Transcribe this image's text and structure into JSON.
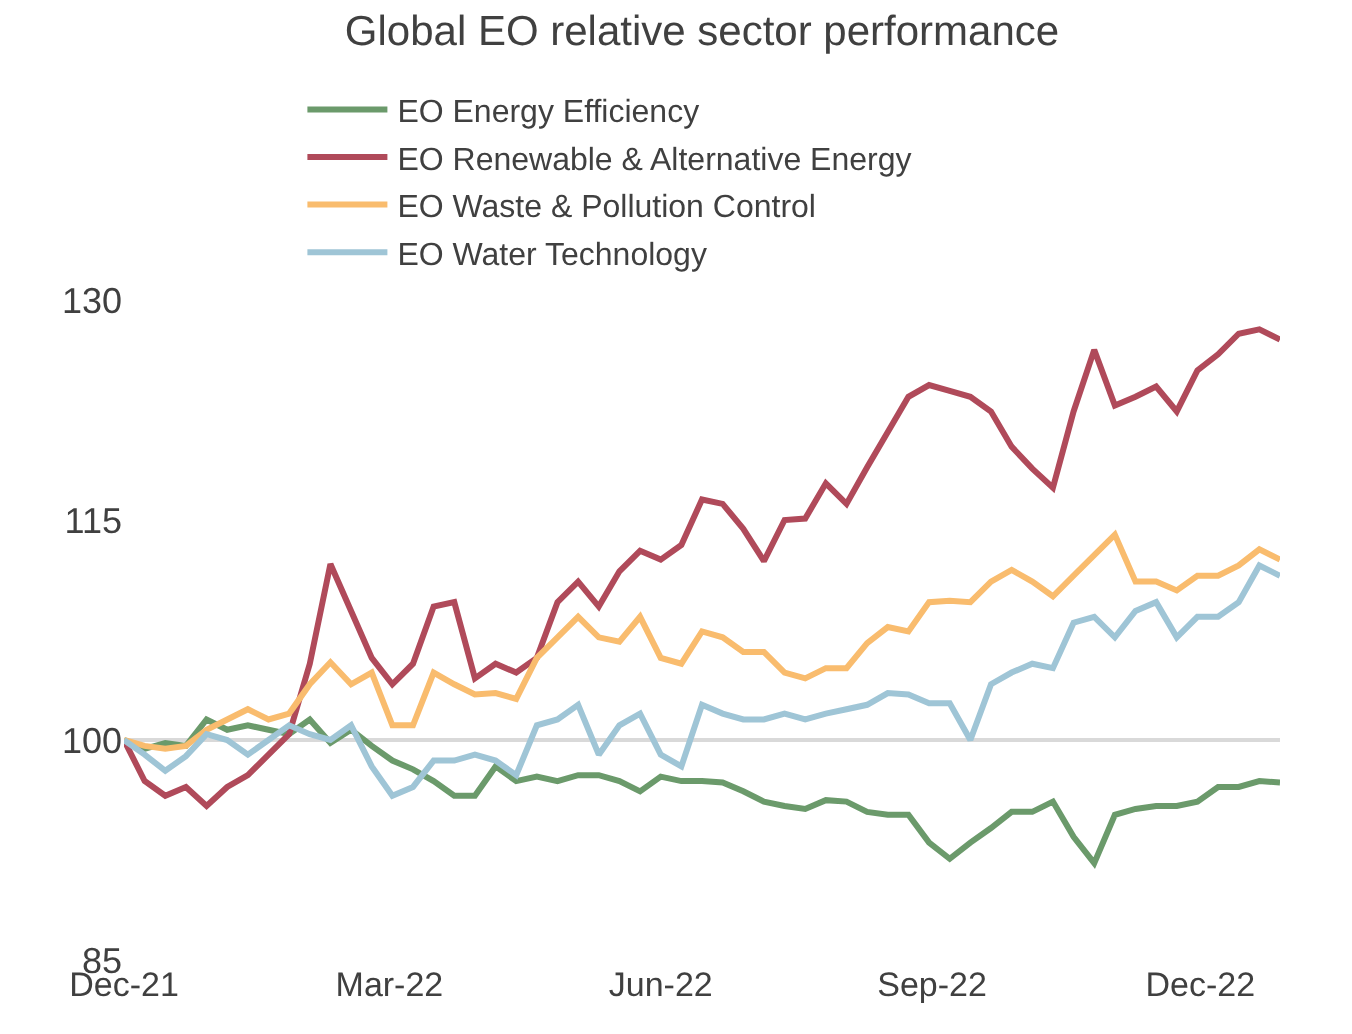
{
  "chart_data": {
    "type": "line",
    "title": "Global EO relative sector performance",
    "x": [
      "2021-12-01",
      "2021-12-08",
      "2021-12-15",
      "2021-12-22",
      "2021-12-29",
      "2022-01-05",
      "2022-01-12",
      "2022-01-19",
      "2022-01-26",
      "2022-02-02",
      "2022-02-09",
      "2022-02-16",
      "2022-02-23",
      "2022-03-02",
      "2022-03-09",
      "2022-03-16",
      "2022-03-23",
      "2022-03-30",
      "2022-04-06",
      "2022-04-13",
      "2022-04-20",
      "2022-04-27",
      "2022-05-04",
      "2022-05-11",
      "2022-05-18",
      "2022-05-25",
      "2022-06-01",
      "2022-06-08",
      "2022-06-15",
      "2022-06-22",
      "2022-06-29",
      "2022-07-06",
      "2022-07-13",
      "2022-07-20",
      "2022-07-27",
      "2022-08-03",
      "2022-08-10",
      "2022-08-17",
      "2022-08-24",
      "2022-08-31",
      "2022-09-07",
      "2022-09-14",
      "2022-09-21",
      "2022-09-28",
      "2022-10-05",
      "2022-10-12",
      "2022-10-19",
      "2022-10-26",
      "2022-11-02",
      "2022-11-09",
      "2022-11-16",
      "2022-11-23",
      "2022-11-30",
      "2022-12-07",
      "2022-12-14",
      "2022-12-21",
      "2022-12-28"
    ],
    "series": [
      {
        "name": "EO Energy Efficiency",
        "color": "#6b9a6b",
        "values": [
          100,
          99.4,
          99.8,
          99.6,
          101.4,
          100.7,
          101,
          100.7,
          100.4,
          101.4,
          99.8,
          100.7,
          99.6,
          98.6,
          98,
          97.2,
          96.2,
          96.2,
          98.2,
          97.2,
          97.5,
          97.2,
          97.6,
          97.6,
          97.2,
          96.5,
          97.5,
          97.2,
          97.2,
          97.1,
          96.5,
          95.8,
          95.5,
          95.3,
          95.9,
          95.8,
          95.1,
          94.9,
          94.9,
          93,
          91.9,
          93,
          94,
          95.1,
          95.1,
          95.8,
          93.4,
          91.6,
          94.9,
          95.3,
          95.5,
          95.5,
          95.8,
          96.8,
          96.8,
          97.2,
          97.1
        ]
      },
      {
        "name": "EO Renewable & Alternative Energy",
        "color": "#b04a5a",
        "values": [
          100,
          97.2,
          96.2,
          96.8,
          95.5,
          96.8,
          97.6,
          99,
          100.4,
          105.2,
          112,
          108.8,
          105.6,
          103.8,
          105.2,
          109.1,
          109.4,
          104.2,
          105.2,
          104.6,
          105.6,
          109.4,
          110.8,
          109.1,
          111.5,
          112.9,
          112.3,
          113.3,
          116.4,
          116.1,
          114.4,
          112.2,
          115,
          115.1,
          117.5,
          116.1,
          118.6,
          121,
          123.4,
          124.2,
          123.8,
          123.4,
          122.4,
          120,
          118.5,
          117.2,
          122.4,
          126.6,
          122.8,
          123.4,
          124.1,
          122.4,
          125.2,
          126.3,
          127.7,
          128,
          127.3
        ]
      },
      {
        "name": "EO Waste & Pollution Control",
        "color": "#f9bc6e",
        "values": [
          100,
          99.6,
          99.4,
          99.6,
          100.7,
          101.4,
          102.1,
          101.4,
          101.8,
          103.8,
          105.3,
          103.8,
          104.6,
          101,
          101,
          104.6,
          103.8,
          103.1,
          103.2,
          102.8,
          105.6,
          107,
          108.4,
          107,
          106.7,
          108.4,
          105.6,
          105.2,
          107.4,
          107,
          106,
          106,
          104.6,
          104.2,
          104.9,
          104.9,
          106.6,
          107.7,
          107.4,
          109.4,
          109.5,
          109.4,
          110.8,
          111.6,
          110.8,
          109.8,
          111.2,
          112.6,
          114,
          110.8,
          110.8,
          110.2,
          111.2,
          111.2,
          111.9,
          113,
          112.3
        ]
      },
      {
        "name": "EO Water Technology",
        "color": "#9fc5d6",
        "values": [
          100,
          99,
          97.9,
          98.9,
          100.4,
          100,
          99,
          100,
          101,
          100.4,
          100,
          101,
          98.2,
          96.2,
          96.8,
          98.6,
          98.6,
          99,
          98.6,
          97.6,
          101,
          101.4,
          102.4,
          99,
          101,
          101.8,
          99,
          98.2,
          102.4,
          101.8,
          101.4,
          101.4,
          101.8,
          101.4,
          101.8,
          102.1,
          102.4,
          103.2,
          103.1,
          102.5,
          102.5,
          100,
          103.8,
          104.6,
          105.2,
          104.9,
          108,
          108.4,
          107,
          108.8,
          109.4,
          107,
          108.4,
          108.4,
          109.4,
          111.9,
          111.2
        ]
      }
    ],
    "xlim": [
      "2021-12-01",
      "2022-12-28"
    ],
    "xticks": [
      {
        "value": "2021-12-01",
        "label": "Dec-21"
      },
      {
        "value": "2022-03-01",
        "label": "Mar-22"
      },
      {
        "value": "2022-06-01",
        "label": "Jun-22"
      },
      {
        "value": "2022-09-01",
        "label": "Sep-22"
      },
      {
        "value": "2022-12-01",
        "label": "Dec-22"
      }
    ],
    "ylim": [
      85,
      130
    ],
    "yticks": [
      85,
      100,
      115,
      130
    ],
    "ref_lines": [
      {
        "axis": "y",
        "value": 100,
        "color": "#d9d9d9"
      }
    ],
    "legend": "top",
    "grid": false,
    "line_style": "solid"
  }
}
